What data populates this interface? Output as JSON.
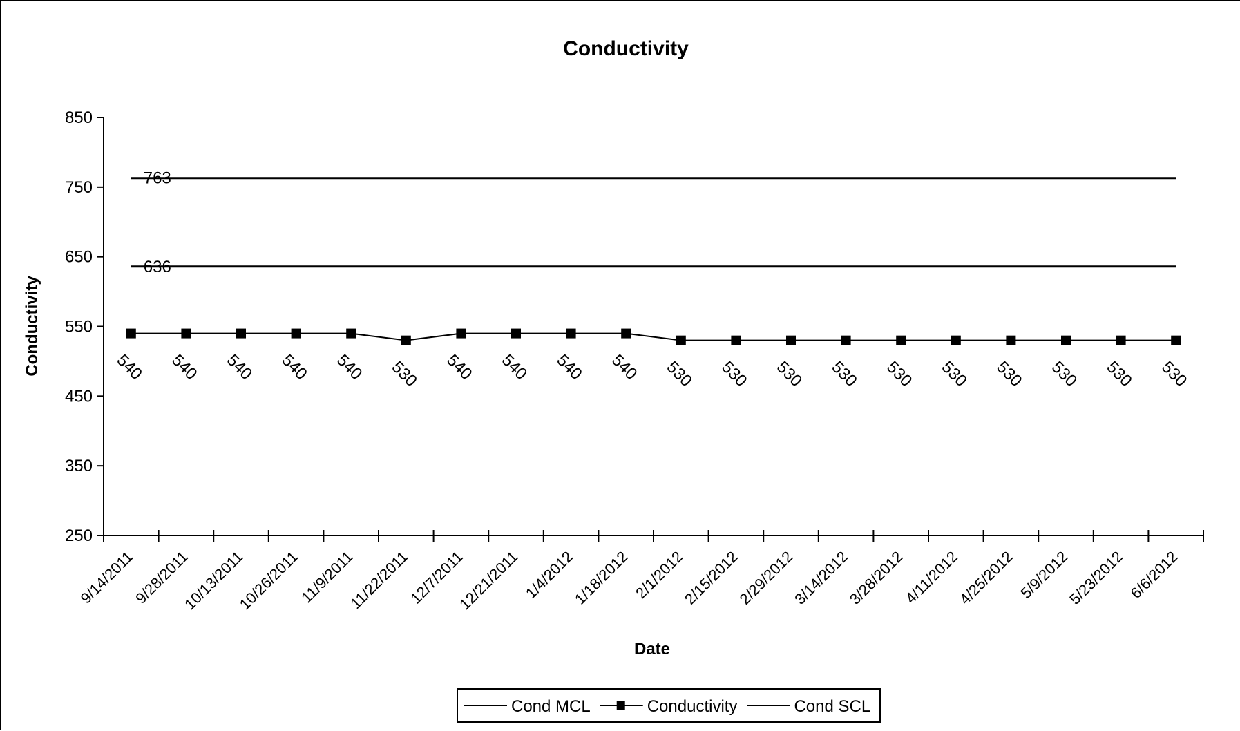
{
  "chart_data": {
    "type": "line",
    "title": "Conductivity",
    "xlabel": "Date",
    "ylabel": "Conductivity",
    "ylim": [
      250,
      850
    ],
    "yticks": [
      850,
      750,
      650,
      550,
      450,
      350,
      250
    ],
    "grid": false,
    "legend_position": "bottom",
    "categories": [
      "9/14/2011",
      "9/28/2011",
      "10/13/2011",
      "10/26/2011",
      "11/9/2011",
      "11/22/2011",
      "12/7/2011",
      "12/21/2011",
      "1/4/2012",
      "1/18/2012",
      "2/1/2012",
      "2/15/2012",
      "2/29/2012",
      "3/14/2012",
      "3/28/2012",
      "4/11/2012",
      "4/25/2012",
      "5/9/2012",
      "5/23/2012",
      "6/6/2012"
    ],
    "series": [
      {
        "name": "Cond MCL",
        "values": [
          763,
          763,
          763,
          763,
          763,
          763,
          763,
          763,
          763,
          763,
          763,
          763,
          763,
          763,
          763,
          763,
          763,
          763,
          763,
          763
        ],
        "label": "763",
        "color": "#000000"
      },
      {
        "name": "Conductivity",
        "values": [
          540,
          540,
          540,
          540,
          540,
          530,
          540,
          540,
          540,
          540,
          530,
          530,
          530,
          530,
          530,
          530,
          530,
          530,
          530,
          530
        ],
        "labels": [
          "540",
          "540",
          "540",
          "540",
          "540",
          "530",
          "540",
          "540",
          "540",
          "540",
          "530",
          "530",
          "530",
          "530",
          "530",
          "530",
          "530",
          "530",
          "530",
          "530"
        ],
        "color": "#000000",
        "marker": "square"
      },
      {
        "name": "Cond SCL",
        "values": [
          636,
          636,
          636,
          636,
          636,
          636,
          636,
          636,
          636,
          636,
          636,
          636,
          636,
          636,
          636,
          636,
          636,
          636,
          636,
          636
        ],
        "label": "636",
        "color": "#000000"
      }
    ]
  }
}
